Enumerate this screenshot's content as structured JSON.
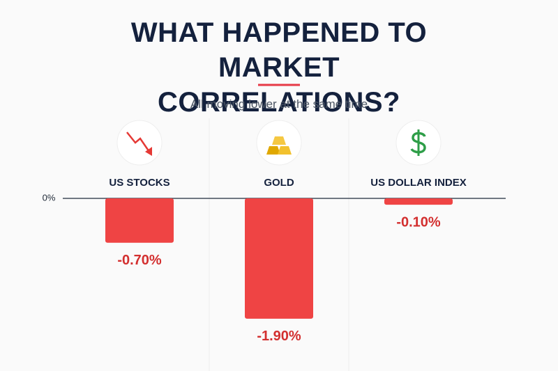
{
  "chart_data": {
    "type": "bar",
    "title": "WHAT HAPPENED TO MARKET CORRELATIONS?",
    "subtitle": "All moving lower at the same time",
    "categories": [
      "US STOCKS",
      "GOLD",
      "US DOLLAR INDEX"
    ],
    "values": [
      -0.7,
      -1.9,
      -0.1
    ],
    "value_labels": [
      "-0.70%",
      "-1.90%",
      "-0.10%"
    ],
    "color": "#ef4444",
    "ylim": [
      -2,
      0
    ],
    "yticks": [
      {
        "value": 0,
        "label": "0%"
      }
    ]
  }
}
